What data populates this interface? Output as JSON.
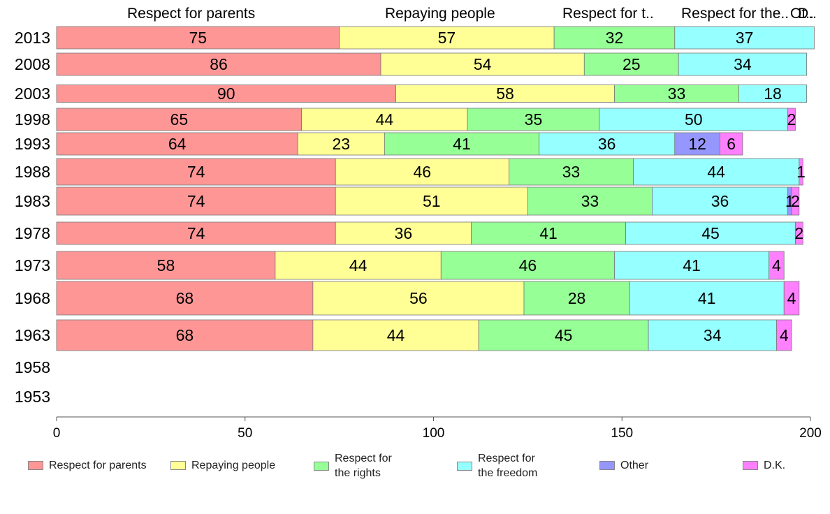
{
  "chart_data": {
    "type": "bar",
    "orientation": "horizontal",
    "stacked": true,
    "categories": [
      "2013",
      "2008",
      "2003",
      "1998",
      "1993",
      "1988",
      "1983",
      "1978",
      "1973",
      "1968",
      "1963",
      "1958",
      "1953"
    ],
    "series": [
      {
        "name": "Respect for parents",
        "color": "#ff9696",
        "values": [
          75,
          86,
          90,
          65,
          64,
          74,
          74,
          74,
          58,
          68,
          68,
          null,
          null
        ]
      },
      {
        "name": "Repaying people",
        "color": "#ffff96",
        "values": [
          57,
          54,
          58,
          44,
          23,
          46,
          51,
          36,
          44,
          56,
          44,
          null,
          null
        ]
      },
      {
        "name": "Respect for the rights",
        "color": "#96ff96",
        "values": [
          32,
          25,
          33,
          35,
          41,
          33,
          33,
          41,
          46,
          28,
          45,
          null,
          null
        ]
      },
      {
        "name": "Respect for the freedom",
        "color": "#96ffff",
        "values": [
          37,
          34,
          18,
          50,
          36,
          44,
          36,
          45,
          41,
          41,
          34,
          null,
          null
        ]
      },
      {
        "name": "Other",
        "color": "#9696ff",
        "values": [
          0,
          0,
          0,
          0,
          12,
          0,
          1,
          0,
          0,
          0,
          0,
          null,
          null
        ]
      },
      {
        "name": "D.K.",
        "color": "#ff80ff",
        "values": [
          0,
          0,
          0,
          2,
          6,
          1,
          2,
          2,
          4,
          4,
          4,
          null,
          null
        ]
      }
    ],
    "xlim": [
      0,
      200
    ],
    "xticks": [
      "0",
      "50",
      "100",
      "150",
      "200"
    ],
    "grid": false,
    "legend_position": "bottom",
    "legend": [
      {
        "line1": "Respect for parents",
        "line2": ""
      },
      {
        "line1": "Repaying people",
        "line2": ""
      },
      {
        "line1": "Respect for",
        "line2": "the rights"
      },
      {
        "line1": "Respect for",
        "line2": "the freedom"
      },
      {
        "line1": "Other",
        "line2": ""
      },
      {
        "line1": "D.K.",
        "line2": ""
      }
    ],
    "column_headers": [
      "Respect for parents",
      "Repaying people",
      "Respect for t..",
      "Respect for the..",
      "Ot..",
      "D.."
    ]
  }
}
